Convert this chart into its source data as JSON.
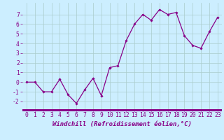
{
  "x": [
    0,
    1,
    2,
    3,
    4,
    5,
    6,
    7,
    8,
    9,
    10,
    11,
    12,
    13,
    14,
    15,
    16,
    17,
    18,
    19,
    20,
    21,
    22,
    23
  ],
  "y": [
    0,
    0,
    -1,
    -1,
    0.3,
    -1.3,
    -2.2,
    -0.8,
    0.4,
    -1.4,
    1.5,
    1.7,
    4.3,
    6.0,
    7.0,
    6.4,
    7.5,
    7.0,
    7.2,
    4.8,
    3.8,
    3.5,
    5.2,
    6.7
  ],
  "line_color": "#880088",
  "marker": "D",
  "marker_size": 1.8,
  "line_width": 0.9,
  "bg_color": "#cceeff",
  "grid_color": "#aacccc",
  "xlabel": "Windchill (Refroidissement éolien,°C)",
  "xlabel_color": "#880088",
  "xlabel_fontsize": 6.5,
  "tick_label_color": "#880088",
  "tick_fontsize": 5.8,
  "ylim": [
    -2.8,
    8.2
  ],
  "yticks": [
    -2,
    -1,
    0,
    1,
    2,
    3,
    4,
    5,
    6,
    7
  ],
  "xticks": [
    0,
    1,
    2,
    3,
    4,
    5,
    6,
    7,
    8,
    9,
    10,
    11,
    12,
    13,
    14,
    15,
    16,
    17,
    18,
    19,
    20,
    21,
    22,
    23
  ],
  "bottom_bar_color": "#880088",
  "bottom_bar_height": 0.013
}
